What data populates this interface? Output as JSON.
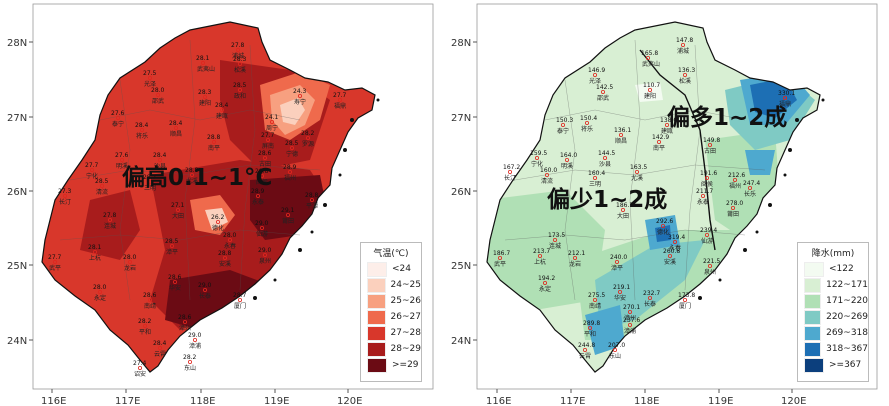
{
  "axes": {
    "lat_labels": [
      "28N",
      "27N",
      "26N",
      "25N",
      "24N"
    ],
    "lon_labels": [
      "116E",
      "117E",
      "118E",
      "119E",
      "120E"
    ]
  },
  "left_map": {
    "annotation": "偏高0.1~1°C",
    "legend": {
      "title": "气温(℃)",
      "items": [
        {
          "label": "<24",
          "color": "#fdeee9"
        },
        {
          "label": "24~25",
          "color": "#fbd0bd"
        },
        {
          "label": "25~26",
          "color": "#f7a080"
        },
        {
          "label": "26~27",
          "color": "#ef6a4c"
        },
        {
          "label": "27~28",
          "color": "#d8372b"
        },
        {
          "label": "28~29",
          "color": "#a81c1c"
        },
        {
          "label": ">=29",
          "color": "#6b0b14"
        }
      ]
    },
    "stations": [
      {
        "name": "武夷山",
        "value": "28.1"
      },
      {
        "name": "浦城",
        "value": "27.8"
      },
      {
        "name": "光泽",
        "value": "27.5"
      },
      {
        "name": "邵武",
        "value": "28.0"
      },
      {
        "name": "建阳",
        "value": "28.3"
      },
      {
        "name": "松溪",
        "value": "28.3"
      },
      {
        "name": "政和",
        "value": "28.5"
      },
      {
        "name": "寿宁",
        "value": "24.3"
      },
      {
        "name": "周宁",
        "value": "24.1"
      },
      {
        "name": "福鼎",
        "value": "27.7"
      },
      {
        "name": "泰宁",
        "value": "27.6"
      },
      {
        "name": "建瓯",
        "value": "28.4"
      },
      {
        "name": "屏南",
        "value": "27.7"
      },
      {
        "name": "古田",
        "value": "28.6"
      },
      {
        "name": "宁德",
        "value": "28.5"
      },
      {
        "name": "将乐",
        "value": "28.4"
      },
      {
        "name": "顺昌",
        "value": "28.4"
      },
      {
        "name": "南平",
        "value": "28.8"
      },
      {
        "name": "罗源",
        "value": "28.2"
      },
      {
        "name": "宁化",
        "value": "27.7"
      },
      {
        "name": "明溪",
        "value": "27.6"
      },
      {
        "name": "沙县",
        "value": "28.4"
      },
      {
        "name": "尤溪",
        "value": "28.8"
      },
      {
        "name": "闽侯",
        "value": "28.8"
      },
      {
        "name": "福州",
        "value": "28.9"
      },
      {
        "name": "长汀",
        "value": "27.3"
      },
      {
        "name": "清流",
        "value": "28.5"
      },
      {
        "name": "三明",
        "value": "28.7"
      },
      {
        "name": "永泰",
        "value": "28.9"
      },
      {
        "name": "平潭",
        "value": "28.8"
      },
      {
        "name": "连城",
        "value": "27.8"
      },
      {
        "name": "大田",
        "value": "27.1"
      },
      {
        "name": "德化",
        "value": "26.2"
      },
      {
        "name": "仙游",
        "value": "29.0"
      },
      {
        "name": "莆田",
        "value": "29.1"
      },
      {
        "name": "武平",
        "value": "27.7"
      },
      {
        "name": "上杭",
        "value": "28.1"
      },
      {
        "name": "龙岩",
        "value": "28.0"
      },
      {
        "name": "漳平",
        "value": "28.5"
      },
      {
        "name": "永春",
        "value": "28.0"
      },
      {
        "name": "安溪",
        "value": "28.8"
      },
      {
        "name": "泉州",
        "value": "29.0"
      },
      {
        "name": "永定",
        "value": "28.0"
      },
      {
        "name": "南靖",
        "value": "28.6"
      },
      {
        "name": "华安",
        "value": "28.6"
      },
      {
        "name": "长泰",
        "value": "29.0"
      },
      {
        "name": "厦门",
        "value": "28.7"
      },
      {
        "name": "平和",
        "value": "28.2"
      },
      {
        "name": "漳州",
        "value": "28.6"
      },
      {
        "name": "漳浦",
        "value": "29.0"
      },
      {
        "name": "云霄",
        "value": "28.4"
      },
      {
        "name": "东山",
        "value": "28.2"
      },
      {
        "name": "诏安",
        "value": "27.4"
      }
    ]
  },
  "right_map": {
    "annotation_top": "偏多1~2成",
    "annotation_mid": "偏少1~2成",
    "legend": {
      "title": "降水(mm)",
      "items": [
        {
          "label": "<122",
          "color": "#f3fbf1"
        },
        {
          "label": "122~171",
          "color": "#d8efd3"
        },
        {
          "label": "171~220",
          "color": "#b0e0b5"
        },
        {
          "label": "220~269",
          "color": "#7fcac4"
        },
        {
          "label": "269~318",
          "color": "#4ea9cf"
        },
        {
          "label": "318~367",
          "color": "#1d6fb4"
        },
        {
          "label": ">=367",
          "color": "#0c3f7d"
        }
      ]
    },
    "stations": [
      {
        "name": "浦城",
        "value": "147.8"
      },
      {
        "name": "武夷山",
        "value": "165.8"
      },
      {
        "name": "光泽",
        "value": "146.9"
      },
      {
        "name": "松溪",
        "value": "136.3"
      },
      {
        "name": "邵武",
        "value": "142.5"
      },
      {
        "name": "建阳",
        "value": "110.7"
      },
      {
        "name": "福鼎",
        "value": "330.1"
      },
      {
        "name": "泰宁",
        "value": "150.3"
      },
      {
        "name": "将乐",
        "value": "150.4"
      },
      {
        "name": "顺昌",
        "value": "136.1"
      },
      {
        "name": "建瓯",
        "value": "138.0"
      },
      {
        "name": "南平",
        "value": "142.9"
      },
      {
        "name": "古田",
        "value": "149.8"
      },
      {
        "name": "宁化",
        "value": "159.5"
      },
      {
        "name": "明溪",
        "value": "164.0"
      },
      {
        "name": "沙县",
        "value": "144.5"
      },
      {
        "name": "尤溪",
        "value": "163.5"
      },
      {
        "name": "闽侯",
        "value": "191.6"
      },
      {
        "name": "福州",
        "value": "212.6"
      },
      {
        "name": "清流",
        "value": "160.0"
      },
      {
        "name": "三明",
        "value": "160.4"
      },
      {
        "name": "永泰",
        "value": "211.7"
      },
      {
        "name": "长乐",
        "value": "247.4"
      },
      {
        "name": "长汀",
        "value": "167.2"
      },
      {
        "name": "大田",
        "value": "186.7"
      },
      {
        "name": "德化",
        "value": "292.6"
      },
      {
        "name": "仙游",
        "value": "239.4"
      },
      {
        "name": "莆田",
        "value": "278.0"
      },
      {
        "name": "连城",
        "value": "173.5"
      },
      {
        "name": "永春",
        "value": "319.4"
      },
      {
        "name": "武平",
        "value": "186.7"
      },
      {
        "name": "上杭",
        "value": "213.7"
      },
      {
        "name": "龙岩",
        "value": "212.1"
      },
      {
        "name": "漳平",
        "value": "240.0"
      },
      {
        "name": "安溪",
        "value": "260.8"
      },
      {
        "name": "泉州",
        "value": "221.5"
      },
      {
        "name": "永定",
        "value": "194.2"
      },
      {
        "name": "华安",
        "value": "219.1"
      },
      {
        "name": "长泰",
        "value": "232.7"
      },
      {
        "name": "厦门",
        "value": "173.8"
      },
      {
        "name": "南靖",
        "value": "275.5"
      },
      {
        "name": "漳州",
        "value": "270.1"
      },
      {
        "name": "平和",
        "value": "289.8"
      },
      {
        "name": "漳浦",
        "value": "237.6"
      },
      {
        "name": "云霄",
        "value": "244.8"
      },
      {
        "name": "东山",
        "value": "207.0"
      }
    ]
  }
}
